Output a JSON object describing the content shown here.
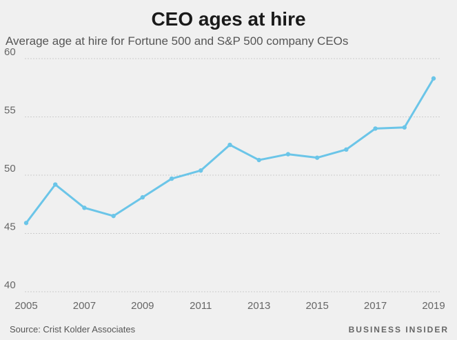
{
  "title": "CEO ages at hire",
  "subtitle": "Average age at hire for Fortune 500 and S&P 500 company CEOs",
  "source": "Source: Crist Kolder Associates",
  "brand": "BUSINESS INSIDER",
  "colors": {
    "line": "#6bc5e8",
    "grid": "#cccccc",
    "background": "#f0f0f0"
  },
  "chart_data": {
    "type": "line",
    "title": "CEO ages at hire",
    "subtitle": "Average age at hire for Fortune 500 and S&P 500 company CEOs",
    "x": [
      2005,
      2006,
      2007,
      2008,
      2009,
      2010,
      2011,
      2012,
      2013,
      2014,
      2015,
      2016,
      2017,
      2018,
      2019
    ],
    "series": [
      {
        "values": [
          45.9,
          49.2,
          47.2,
          46.5,
          48.1,
          49.7,
          50.4,
          52.6,
          51.3,
          51.8,
          51.5,
          52.2,
          54.0,
          54.1,
          58.3
        ]
      }
    ],
    "x_ticks": [
      2005,
      2007,
      2009,
      2011,
      2013,
      2015,
      2017,
      2019
    ],
    "y_ticks": [
      40,
      45,
      50,
      55,
      60
    ],
    "xlim": [
      2005,
      2019
    ],
    "ylim": [
      40,
      60
    ],
    "grid": "horizontal"
  }
}
